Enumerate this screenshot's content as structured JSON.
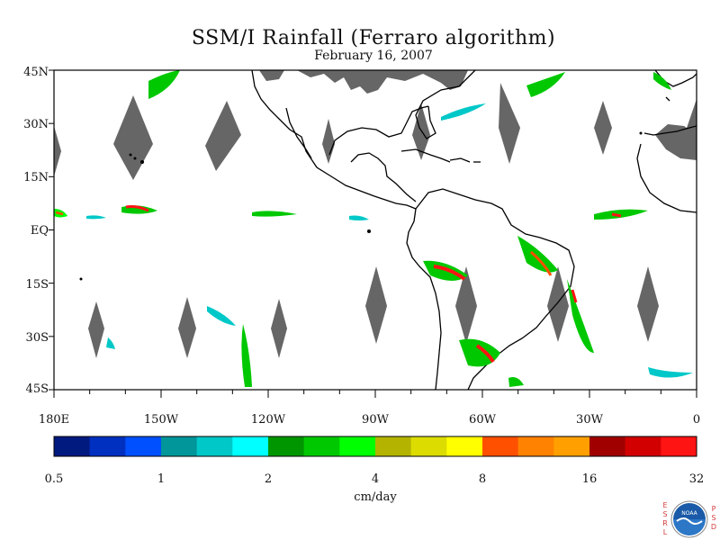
{
  "title": "SSM/I Rainfall (Ferraro algorithm)",
  "subtitle": "February 16, 2007",
  "lat_labels": [
    "45N",
    "30N",
    "15N",
    "EQ",
    "15S",
    "30S",
    "45S"
  ],
  "lon_labels": [
    "180E",
    "150W",
    "120W",
    "90W",
    "60W",
    "30W",
    "0"
  ],
  "colorbar": {
    "unit": "cm/day",
    "tick_labels": [
      "0.5",
      "1",
      "2",
      "4",
      "8",
      "16",
      "32"
    ],
    "colors": [
      "#001a80",
      "#0030c0",
      "#0050ff",
      "#00969a",
      "#00c8c8",
      "#00ffff",
      "#009600",
      "#00c800",
      "#00ff00",
      "#b4b400",
      "#dcdc00",
      "#ffff00",
      "#ff5000",
      "#ff8200",
      "#ffa000",
      "#a00000",
      "#d20000",
      "#ff1414"
    ]
  },
  "map": {
    "extent": {
      "lon_min": -180,
      "lon_max": 0,
      "lat_min": -45,
      "lat_max": 45
    },
    "land_color": "#000000",
    "no_data_color": "#666666"
  },
  "logo": {
    "left_letters": [
      "E",
      "S",
      "R",
      "L"
    ],
    "right_letters": [
      "P",
      "S",
      "D"
    ],
    "text": "NOAA"
  }
}
